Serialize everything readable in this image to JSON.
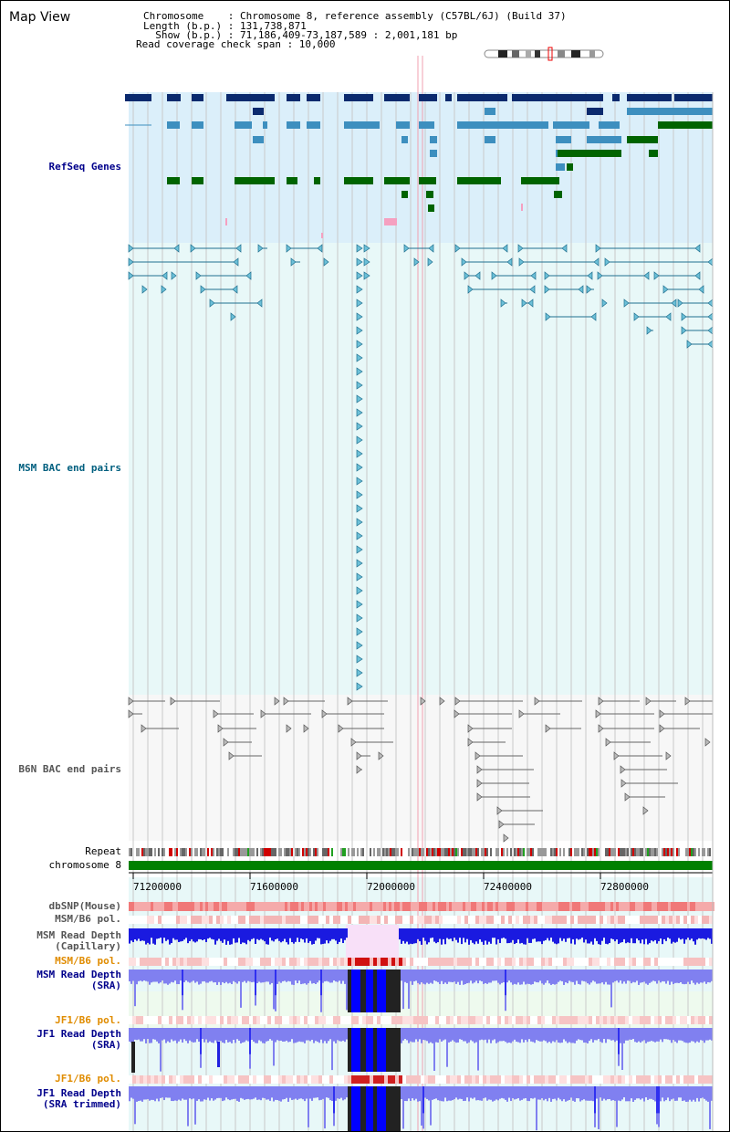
{
  "title": "Map View",
  "header": {
    "chromosome_line": "Chromosome    : Chromosome 8, reference assembly (C57BL/6J) (Build 37)",
    "length_line": "Length (b.p.) : 131,738,871",
    "show_line": "  Show (b.p.) : 71,186,409-73,187,589 : 2,001,181 bp",
    "coverage_line": "Read coverage check span : 10,000"
  },
  "tracks": {
    "refseq": "RefSeq Genes",
    "msm_bac": "MSM BAC end pairs",
    "b6n_bac": "B6N BAC end pairs",
    "repeat": "Repeat",
    "chromosome": "chromosome 8",
    "dbsnp": "dbSNP(Mouse)",
    "msm_b6_pol_1": "MSM/B6 pol.",
    "msm_depth_cap_1": "MSM Read Depth",
    "msm_depth_cap_2": "(Capillary)",
    "msm_b6_pol_2": "MSM/B6 pol.",
    "msm_depth_sra_1": "MSM Read Depth",
    "msm_depth_sra_2": "(SRA)",
    "jf1_b6_pol_1": "JF1/B6 pol.",
    "jf1_depth_sra_1": "JF1 Read Depth",
    "jf1_depth_sra_2": "(SRA)",
    "jf1_b6_pol_2": "JF1/B6 pol.",
    "jf1_depth_trim_1": "JF1 Read Depth",
    "jf1_depth_trim_2": "(SRA trimmed)"
  },
  "axis": {
    "ticks": [
      "71200000",
      "71600000",
      "72000000",
      "72400000",
      "72800000"
    ]
  },
  "colors": {
    "refseq_dark": "#0b2a6e",
    "refseq_mid": "#3d8fbf",
    "refseq_green": "#006400",
    "msm_line": "#1f6f8f",
    "chrom_green": "#008000",
    "depth_blue": "#1f1fe6",
    "depth_light": "#8080f0"
  }
}
